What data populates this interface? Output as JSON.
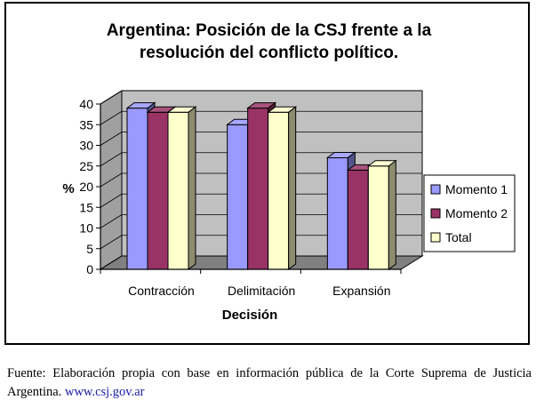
{
  "chart_data": {
    "type": "bar",
    "title_line1": "Argentina: Posición de la CSJ frente a la",
    "title_line2": "resolución del conflicto político.",
    "xlabel": "Decisión",
    "ylabel": "%",
    "ylim": [
      0,
      40
    ],
    "yticks": [
      "0",
      "5",
      "10",
      "15",
      "20",
      "25",
      "30",
      "35",
      "40"
    ],
    "categories": [
      "Contracción",
      "Delimitación",
      "Expansión"
    ],
    "series": [
      {
        "name": "Momento 1",
        "values": [
          39,
          35,
          27
        ],
        "color": "#9999ff"
      },
      {
        "name": "Momento 2",
        "values": [
          38,
          39,
          24
        ],
        "color": "#993366"
      },
      {
        "name": "Total",
        "values": [
          38,
          38,
          25
        ],
        "color": "#ffffcc"
      }
    ],
    "grid": true,
    "legend_position": "right",
    "wall_color": "#c0c0c0",
    "floor_color": "#808080"
  },
  "caption": {
    "text": "Fuente: Elaboración propia con base en información pública de la Corte Suprema de Justicia Argentina.",
    "link": "www.csj.gov.ar"
  }
}
